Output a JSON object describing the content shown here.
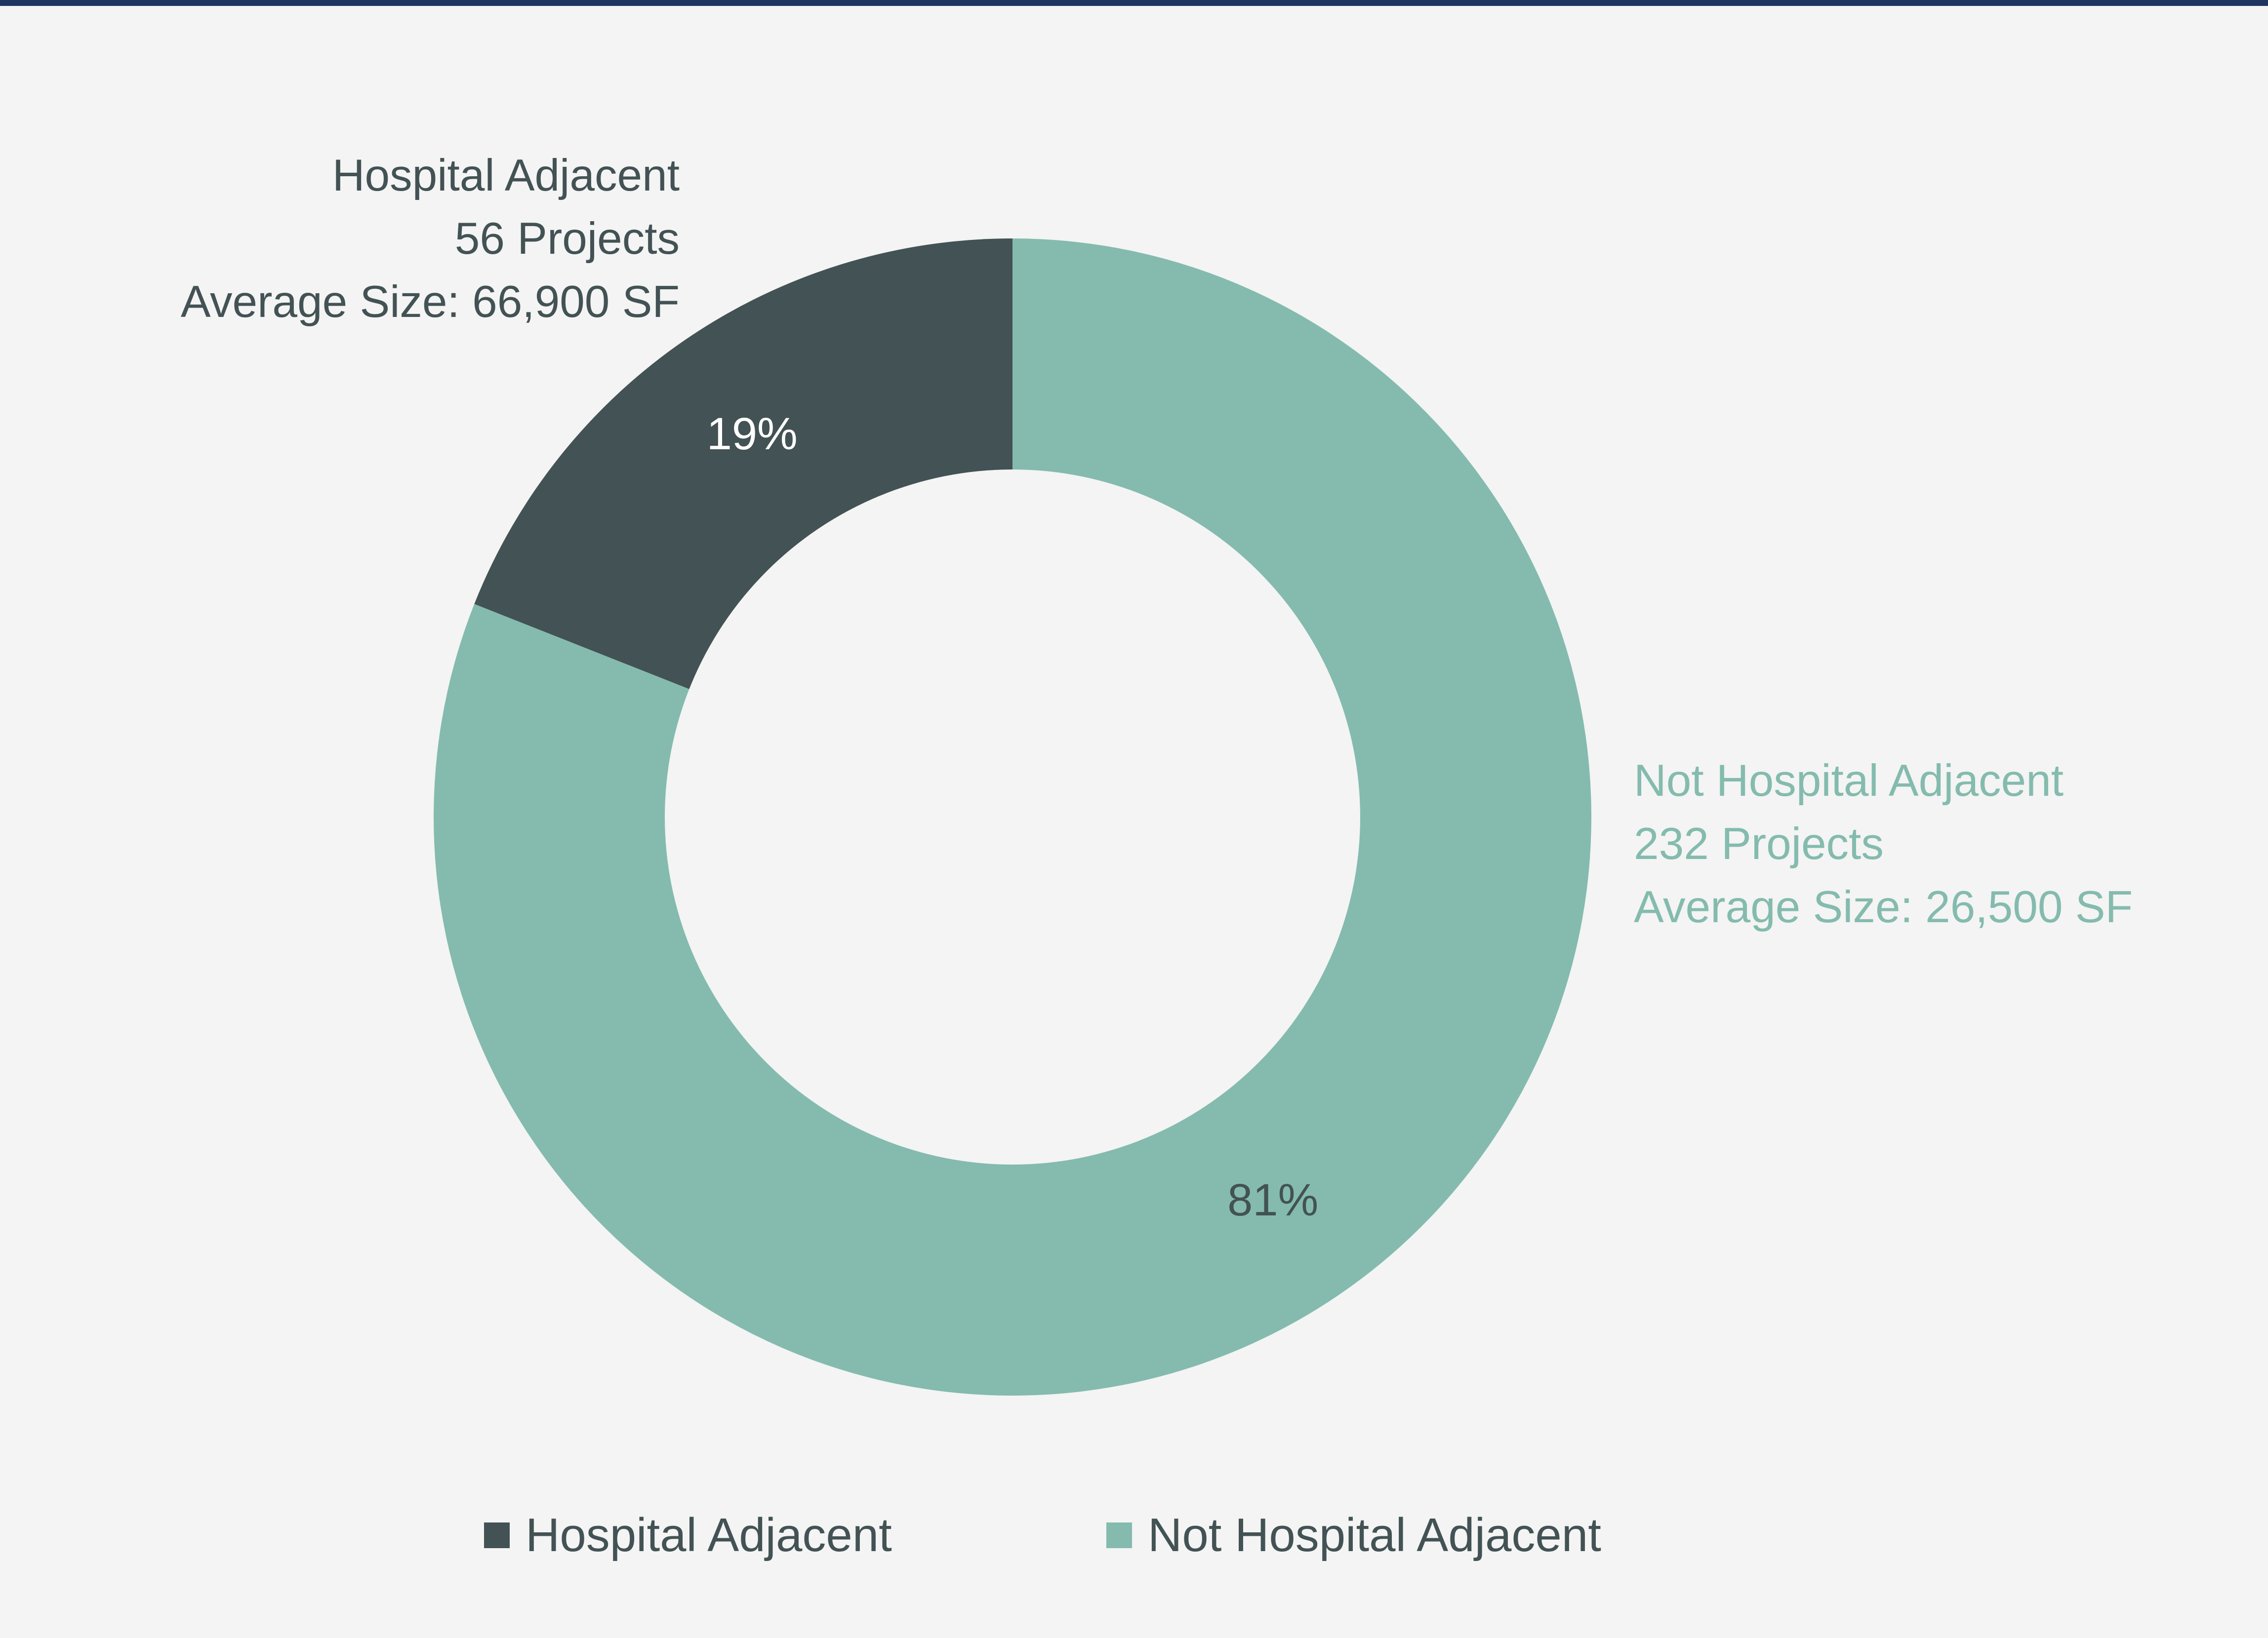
{
  "colors": {
    "background": "#f3f4f3",
    "top_rule": "#1f3461",
    "hospital_adjacent": "#435254",
    "not_hospital_adjacent": "#84bbae",
    "hole": "#f3f4f3",
    "label_on_dark": "#ffffff",
    "label_on_light": "#435254"
  },
  "chart_data": {
    "type": "pie",
    "donut": true,
    "title": "",
    "series": [
      {
        "name": "Hospital Adjacent",
        "value": 19,
        "value_label": "19%",
        "callout": [
          "Hospital Adjacent",
          "56 Projects",
          "Average Size: 66,900 SF"
        ],
        "color": "#435254"
      },
      {
        "name": "Not Hospital Adjacent",
        "value": 81,
        "value_label": "81%",
        "callout": [
          "Not Hospital Adjacent",
          "232 Projects",
          "Average Size: 26,500 SF"
        ],
        "color": "#84bbae"
      }
    ],
    "legend": {
      "placement": "bottom",
      "entries": [
        "Hospital Adjacent",
        "Not Hospital Adjacent"
      ]
    }
  }
}
